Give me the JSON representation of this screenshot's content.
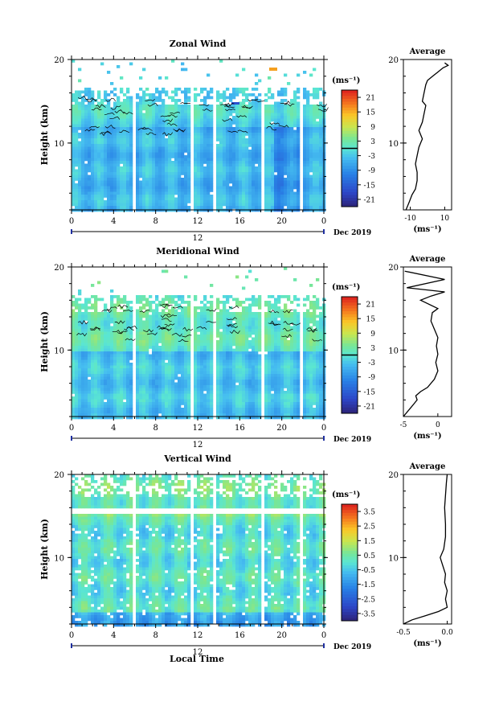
{
  "figure": {
    "xlabel": "Local Time",
    "date_label": "Dec 2019",
    "day_label": "12",
    "unit_label": "(ms⁻¹)",
    "unit_label_avg": "(ms⁻¹)"
  },
  "chart_data": [
    {
      "id": "zonal",
      "type": "heatmap",
      "title": "Zonal Wind",
      "ylabel": "Height (km)",
      "xlim": [
        0,
        24
      ],
      "ylim": [
        2,
        20
      ],
      "xticks": [
        "0",
        "4",
        "8",
        "12",
        "16",
        "20",
        "0"
      ],
      "yticks": [
        "10",
        "20"
      ],
      "gaps_hours": [
        [
          5.7,
          6.0
        ],
        [
          11.1,
          11.5
        ],
        [
          13.3,
          13.6
        ],
        [
          17.8,
          18.1
        ],
        [
          21.5,
          21.8
        ]
      ],
      "colorbar": {
        "ticks": [
          "21",
          "15",
          "9",
          "3",
          "-3",
          "-9",
          "-15",
          "-21"
        ],
        "range": [
          -24,
          24
        ],
        "zero_line": 0
      },
      "colors": {
        "low": "#2a3fb8",
        "mid": "#4fb8f0",
        "high": "#e02020"
      }
    },
    {
      "id": "meridional",
      "type": "heatmap",
      "title": "Meridional Wind",
      "ylabel": "Height (km)",
      "xlim": [
        0,
        24
      ],
      "ylim": [
        2,
        20
      ],
      "xticks": [
        "0",
        "4",
        "8",
        "12",
        "16",
        "20",
        "0"
      ],
      "yticks": [
        "10",
        "20"
      ],
      "gaps_hours": [
        [
          5.7,
          6.0
        ],
        [
          11.1,
          11.5
        ],
        [
          13.3,
          13.6
        ],
        [
          17.8,
          18.1
        ],
        [
          21.5,
          21.8
        ]
      ],
      "colorbar": {
        "ticks": [
          "21",
          "15",
          "9",
          "3",
          "-3",
          "-9",
          "-15",
          "-21"
        ],
        "range": [
          -24,
          24
        ],
        "zero_line": 0
      }
    },
    {
      "id": "vertical",
      "type": "heatmap",
      "title": "Vertical Wind",
      "ylabel": "Height (km)",
      "xlim": [
        0,
        24
      ],
      "ylim": [
        2,
        20
      ],
      "xticks": [
        "0",
        "4",
        "8",
        "12",
        "16",
        "20",
        "0"
      ],
      "yticks": [
        "10",
        "20"
      ],
      "gaps_hours": [
        [
          5.7,
          6.0
        ],
        [
          11.1,
          11.5
        ],
        [
          13.3,
          13.6
        ],
        [
          17.8,
          18.1
        ],
        [
          21.5,
          21.8
        ]
      ],
      "colorbar": {
        "ticks": [
          "3.5",
          "2.5",
          "1.5",
          "0.5",
          "-0.5",
          "-1.5",
          "-2.5",
          "-3.5"
        ],
        "range": [
          -4,
          4
        ],
        "zero_line": null
      }
    },
    {
      "id": "zonal_avg",
      "type": "line",
      "title": "Average",
      "xlim": [
        -14,
        14
      ],
      "ylim": [
        2,
        20
      ],
      "xticks": [
        "-10",
        "10"
      ],
      "yticks": [
        "10",
        "20"
      ],
      "xlabel": "(ms⁻¹)",
      "series": [
        {
          "x": [
            -12.5,
            -11.5,
            -10.5,
            -9,
            -7,
            -6,
            -6,
            -7,
            -6,
            -5,
            -4,
            -3,
            -5,
            -3,
            -2,
            -1,
            -3,
            -2,
            -1,
            0,
            3,
            6,
            9,
            12,
            10
          ],
          "y": [
            2.0,
            2.5,
            3.0,
            3.8,
            4.5,
            5.5,
            6.5,
            7.5,
            8.5,
            9.5,
            10.0,
            10.5,
            11.5,
            12.5,
            13.5,
            14.5,
            15.0,
            16.0,
            17.0,
            17.5,
            18.0,
            18.5,
            19.0,
            19.3,
            19.6
          ]
        }
      ]
    },
    {
      "id": "meridional_avg",
      "type": "line",
      "title": "Average",
      "xlim": [
        -5,
        2
      ],
      "ylim": [
        2,
        20
      ],
      "xticks": [
        "-5",
        "0"
      ],
      "yticks": [
        "10",
        "20"
      ],
      "xlabel": "(ms⁻¹)",
      "series": [
        {
          "x": [
            -5.5,
            -4.5,
            -4.0,
            -3.5,
            -3.0,
            -3.2,
            -2.5,
            -1.5,
            -0.5,
            0,
            -0.3,
            0,
            -0.2,
            0,
            -0.5,
            -1,
            -0.8,
            0,
            -2.5,
            -1,
            1,
            -4.5,
            1,
            -4.8
          ],
          "y": [
            2.0,
            2.5,
            3.0,
            3.5,
            4.0,
            4.5,
            5.0,
            5.5,
            6.5,
            7.5,
            8.5,
            9.5,
            10.5,
            11.5,
            12.5,
            13.5,
            14.5,
            15.0,
            16.0,
            16.5,
            17.0,
            17.5,
            18.5,
            19.5
          ]
        }
      ]
    },
    {
      "id": "vertical_avg",
      "type": "line",
      "title": "Average",
      "xlim": [
        -0.5,
        0.05
      ],
      "ylim": [
        2,
        20
      ],
      "xticks": [
        "-0.5",
        "0.0"
      ],
      "yticks": [
        "10",
        "20"
      ],
      "xlabel": "(ms⁻¹)",
      "series": [
        {
          "x": [
            -0.5,
            -0.4,
            -0.25,
            -0.1,
            0,
            -0.02,
            0,
            -0.03,
            -0.02,
            -0.05,
            -0.08,
            -0.04,
            -0.02,
            -0.02,
            -0.03,
            -0.02,
            -0.01,
            0
          ],
          "y": [
            2.0,
            2.5,
            3.0,
            3.5,
            4.0,
            5.0,
            6.0,
            7.0,
            8.0,
            9.0,
            10.0,
            11.0,
            12.5,
            14.0,
            16.0,
            17.5,
            19.0,
            20.0
          ]
        }
      ]
    }
  ]
}
